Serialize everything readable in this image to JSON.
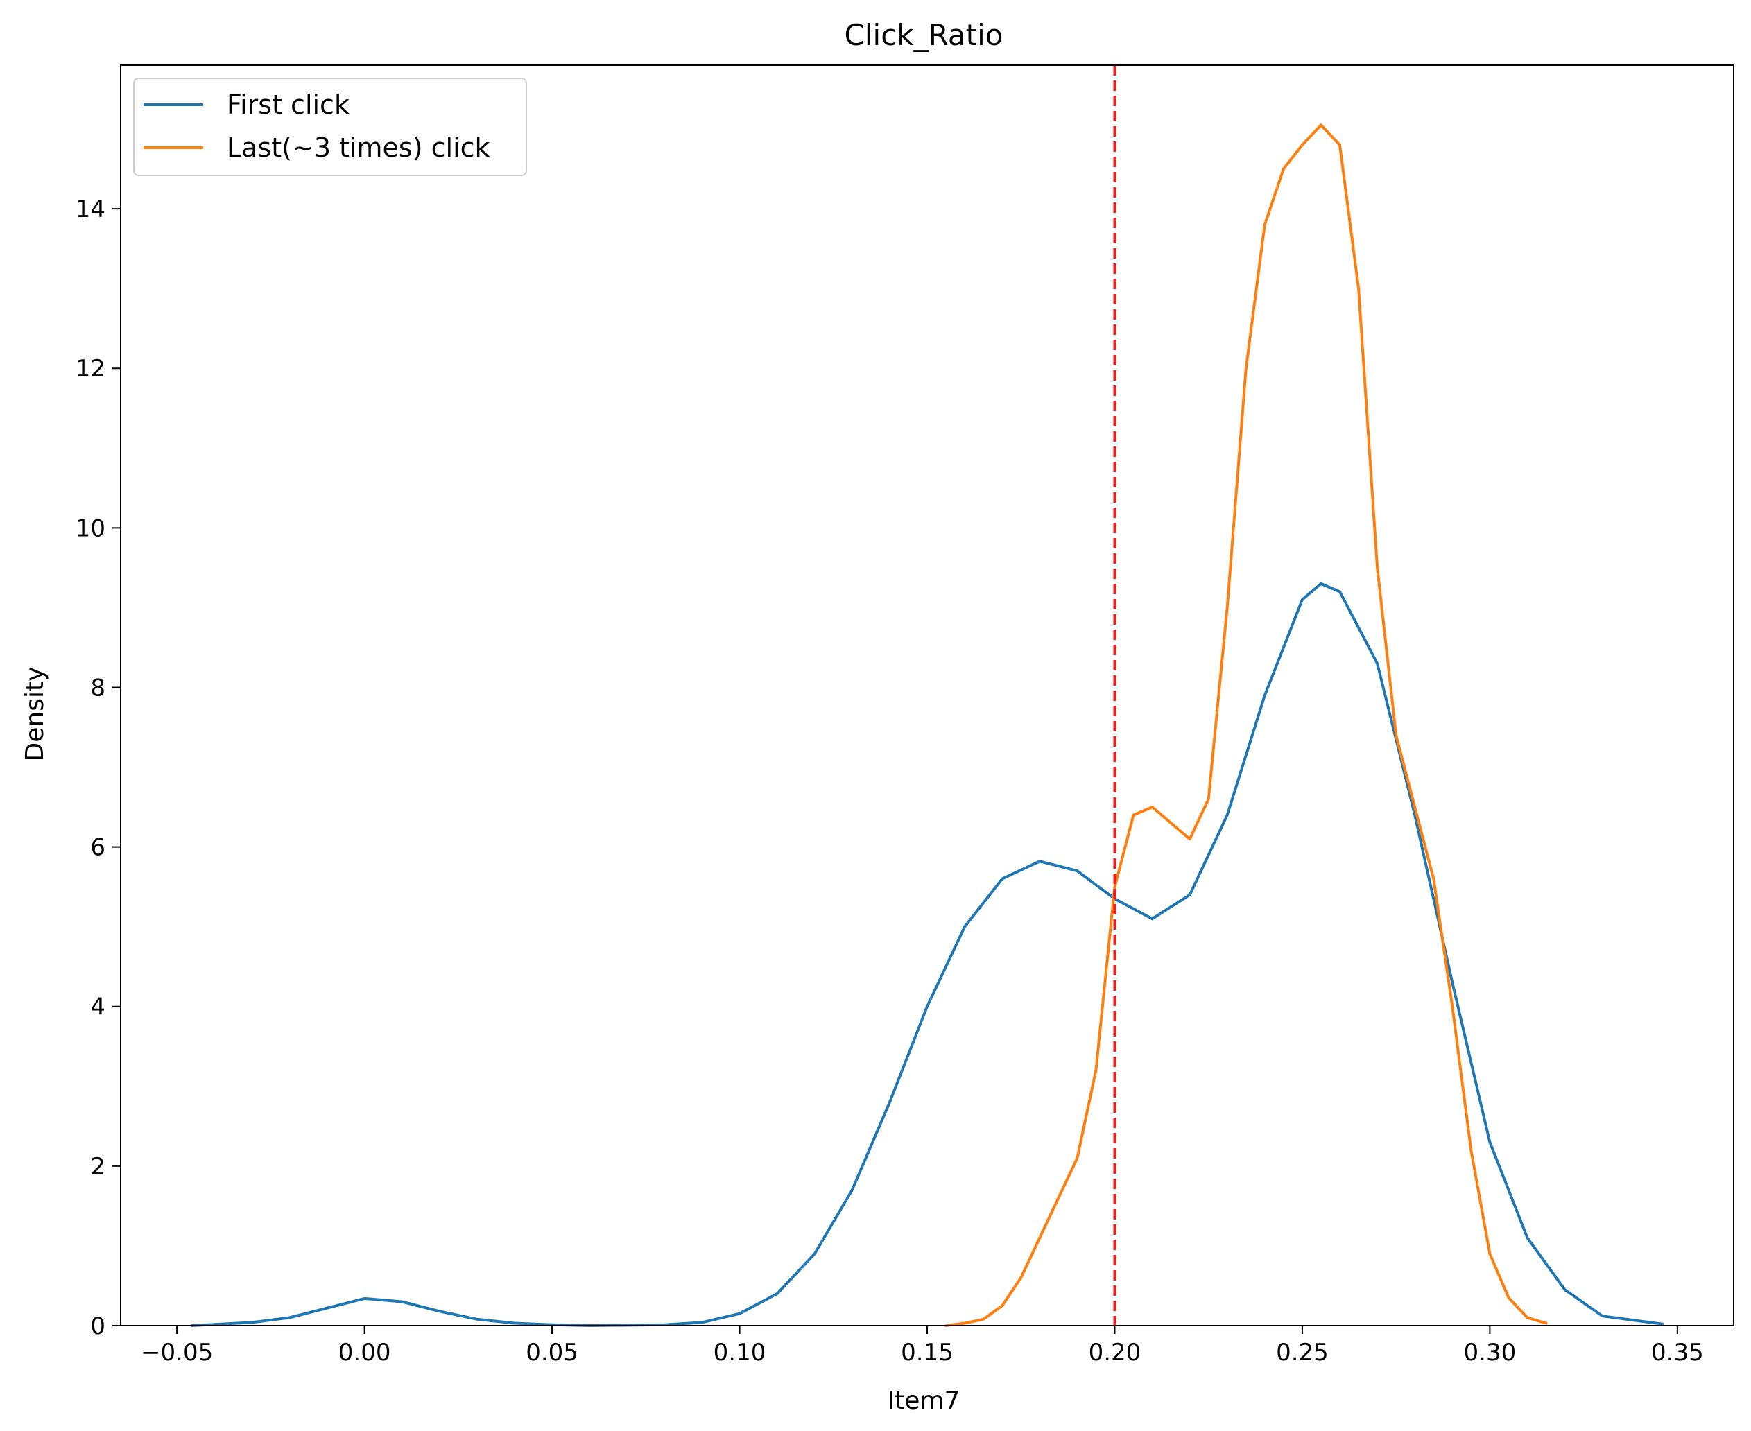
{
  "chart_data": {
    "type": "line",
    "title": "Click_Ratio",
    "xlabel": "Item7",
    "ylabel": "Density",
    "xlim": [
      -0.065,
      0.365
    ],
    "ylim": [
      0,
      15.8
    ],
    "xticks": [
      -0.05,
      0.0,
      0.05,
      0.1,
      0.15,
      0.2,
      0.25,
      0.3,
      0.35
    ],
    "xtick_labels": [
      "−0.05",
      "0.00",
      "0.05",
      "0.10",
      "0.15",
      "0.20",
      "0.25",
      "0.30",
      "0.35"
    ],
    "yticks": [
      0,
      2,
      4,
      6,
      8,
      10,
      12,
      14
    ],
    "ytick_labels": [
      "0",
      "2",
      "4",
      "6",
      "8",
      "10",
      "12",
      "14"
    ],
    "grid": false,
    "legend_position": "upper-left",
    "reference_line": {
      "x": 0.2,
      "color": "#ee1c1c",
      "style": "dashed"
    },
    "series": [
      {
        "name": "First click",
        "color": "#1f77b4",
        "points": [
          [
            -0.046,
            0.0
          ],
          [
            -0.03,
            0.04
          ],
          [
            -0.02,
            0.1
          ],
          [
            -0.01,
            0.22
          ],
          [
            0.0,
            0.34
          ],
          [
            0.01,
            0.3
          ],
          [
            0.02,
            0.18
          ],
          [
            0.03,
            0.08
          ],
          [
            0.04,
            0.03
          ],
          [
            0.05,
            0.01
          ],
          [
            0.06,
            0.0
          ],
          [
            0.08,
            0.01
          ],
          [
            0.09,
            0.04
          ],
          [
            0.1,
            0.15
          ],
          [
            0.11,
            0.4
          ],
          [
            0.12,
            0.9
          ],
          [
            0.13,
            1.7
          ],
          [
            0.14,
            2.8
          ],
          [
            0.15,
            4.0
          ],
          [
            0.16,
            5.0
          ],
          [
            0.17,
            5.6
          ],
          [
            0.18,
            5.82
          ],
          [
            0.19,
            5.7
          ],
          [
            0.2,
            5.35
          ],
          [
            0.21,
            5.1
          ],
          [
            0.22,
            5.4
          ],
          [
            0.23,
            6.4
          ],
          [
            0.24,
            7.9
          ],
          [
            0.25,
            9.1
          ],
          [
            0.255,
            9.3
          ],
          [
            0.26,
            9.2
          ],
          [
            0.27,
            8.3
          ],
          [
            0.28,
            6.4
          ],
          [
            0.29,
            4.3
          ],
          [
            0.3,
            2.3
          ],
          [
            0.31,
            1.1
          ],
          [
            0.32,
            0.45
          ],
          [
            0.33,
            0.12
          ],
          [
            0.346,
            0.02
          ]
        ]
      },
      {
        "name": "Last(~3 times) click",
        "color": "#ff7f0e",
        "points": [
          [
            0.155,
            0.0
          ],
          [
            0.16,
            0.03
          ],
          [
            0.165,
            0.08
          ],
          [
            0.17,
            0.25
          ],
          [
            0.175,
            0.6
          ],
          [
            0.18,
            1.1
          ],
          [
            0.185,
            1.6
          ],
          [
            0.19,
            2.1
          ],
          [
            0.195,
            3.2
          ],
          [
            0.2,
            5.5
          ],
          [
            0.205,
            6.4
          ],
          [
            0.21,
            6.5
          ],
          [
            0.215,
            6.3
          ],
          [
            0.22,
            6.1
          ],
          [
            0.225,
            6.6
          ],
          [
            0.23,
            9.0
          ],
          [
            0.235,
            12.0
          ],
          [
            0.24,
            13.8
          ],
          [
            0.245,
            14.5
          ],
          [
            0.25,
            14.8
          ],
          [
            0.255,
            15.05
          ],
          [
            0.26,
            14.8
          ],
          [
            0.265,
            13.0
          ],
          [
            0.27,
            9.5
          ],
          [
            0.275,
            7.4
          ],
          [
            0.28,
            6.5
          ],
          [
            0.285,
            5.6
          ],
          [
            0.29,
            4.0
          ],
          [
            0.295,
            2.2
          ],
          [
            0.3,
            0.9
          ],
          [
            0.305,
            0.35
          ],
          [
            0.31,
            0.1
          ],
          [
            0.315,
            0.03
          ]
        ]
      }
    ]
  }
}
